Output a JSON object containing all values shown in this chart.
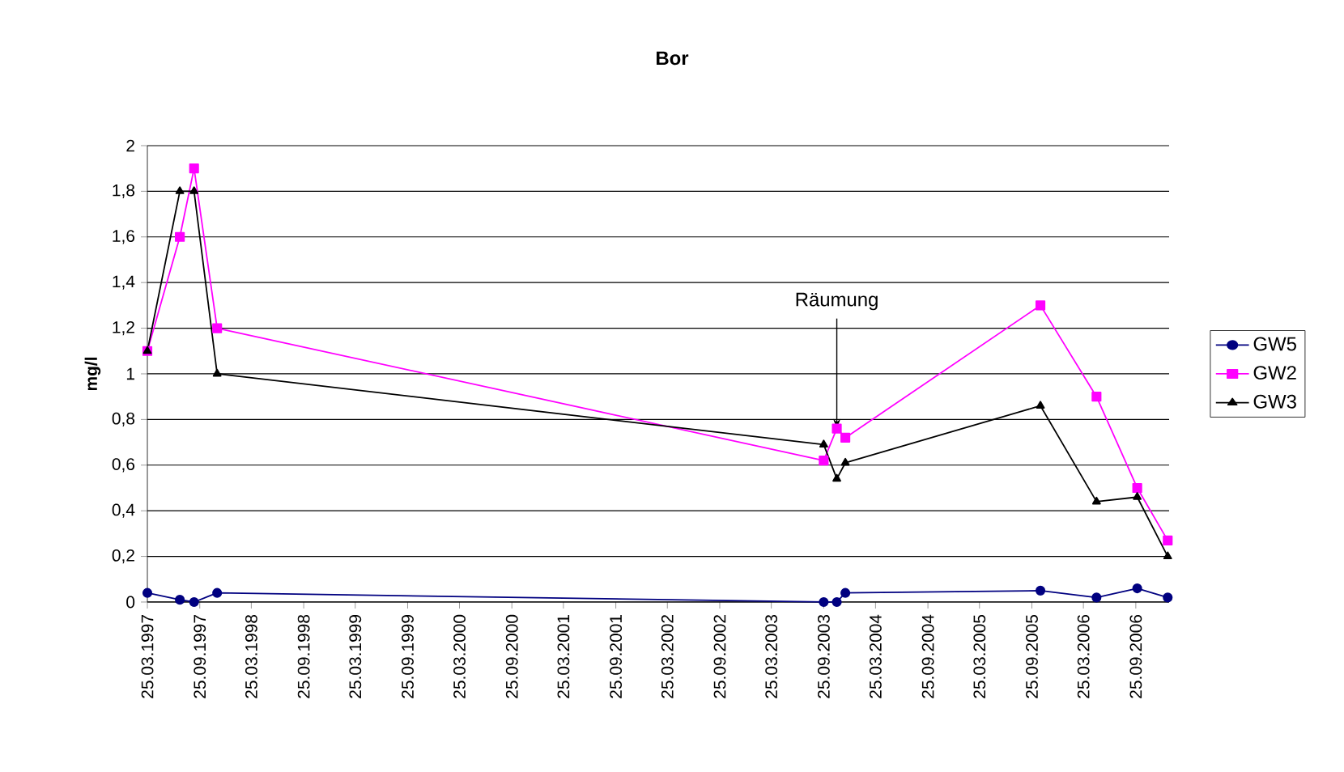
{
  "chart_data": {
    "type": "line",
    "title": "Bor",
    "ylabel": "mg/l",
    "x": [
      "1997-03-25",
      "1997-07-17",
      "1997-09-05",
      "1997-11-25",
      "2003-09-25",
      "2003-11-10",
      "2003-12-10",
      "2005-10-25",
      "2006-05-10",
      "2006-09-30",
      "2007-01-15"
    ],
    "series": [
      {
        "name": "GW5",
        "color": "#000080",
        "marker": "circle",
        "values": [
          0.04,
          0.01,
          0.0,
          0.04,
          0.0,
          0.0,
          0.04,
          0.05,
          0.02,
          0.06,
          0.02
        ]
      },
      {
        "name": "GW2",
        "color": "#ff00ff",
        "marker": "square",
        "values": [
          1.1,
          1.6,
          1.9,
          1.2,
          0.62,
          0.76,
          0.72,
          1.3,
          0.9,
          0.5,
          0.27
        ]
      },
      {
        "name": "GW3",
        "color": "#000000",
        "marker": "triangle",
        "values": [
          1.1,
          1.8,
          1.8,
          1.0,
          0.69,
          0.54,
          0.61,
          0.86,
          0.44,
          0.46,
          0.2
        ]
      }
    ],
    "xlim": [
      "1997-03-25",
      "2007-01-20"
    ],
    "xticks": [
      {
        "value": "1997-03-25",
        "label": "25.03.1997"
      },
      {
        "value": "1997-09-25",
        "label": "25.09.1997"
      },
      {
        "value": "1998-03-25",
        "label": "25.03.1998"
      },
      {
        "value": "1998-09-25",
        "label": "25.09.1998"
      },
      {
        "value": "1999-03-25",
        "label": "25.03.1999"
      },
      {
        "value": "1999-09-25",
        "label": "25.09.1999"
      },
      {
        "value": "2000-03-25",
        "label": "25.03.2000"
      },
      {
        "value": "2000-09-25",
        "label": "25.09.2000"
      },
      {
        "value": "2001-03-25",
        "label": "25.03.2001"
      },
      {
        "value": "2001-09-25",
        "label": "25.09.2001"
      },
      {
        "value": "2002-03-25",
        "label": "25.03.2002"
      },
      {
        "value": "2002-09-25",
        "label": "25.09.2002"
      },
      {
        "value": "2003-03-25",
        "label": "25.03.2003"
      },
      {
        "value": "2003-09-25",
        "label": "25.09.2003"
      },
      {
        "value": "2004-03-25",
        "label": "25.03.2004"
      },
      {
        "value": "2004-09-25",
        "label": "25.09.2004"
      },
      {
        "value": "2005-03-25",
        "label": "25.03.2005"
      },
      {
        "value": "2005-09-25",
        "label": "25.09.2005"
      },
      {
        "value": "2006-03-25",
        "label": "25.03.2006"
      },
      {
        "value": "2006-09-25",
        "label": "25.09.2006"
      }
    ],
    "ylim": [
      0,
      2
    ],
    "yticks": [
      0,
      {
        "value": 0.2,
        "label": "0,2"
      },
      {
        "value": 0.4,
        "label": "0,4"
      },
      {
        "value": 0.6,
        "label": "0,6"
      },
      {
        "value": 0.8,
        "label": "0,8"
      },
      1,
      {
        "value": 1.2,
        "label": "1,2"
      },
      {
        "value": 1.4,
        "label": "1,4"
      },
      {
        "value": 1.6,
        "label": "1,6"
      },
      {
        "value": 1.8,
        "label": "1,8"
      },
      2
    ],
    "grid": "y",
    "legend": "right",
    "line_style": "solid",
    "annotations": [
      {
        "text": "Räumung",
        "x": "2003-11-10",
        "y": 0.76
      }
    ]
  }
}
